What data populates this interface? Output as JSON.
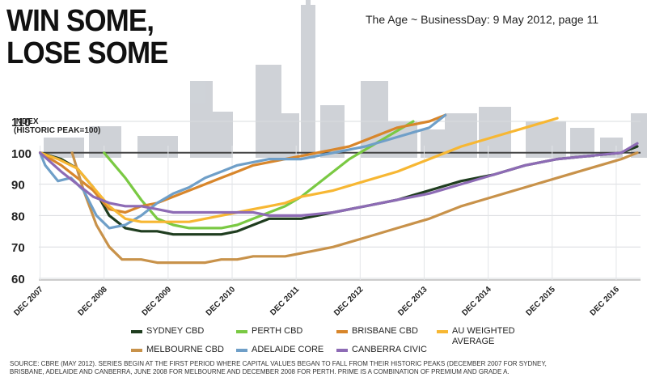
{
  "headline": "WIN SOME,\nLOSE SOME",
  "source_title": "The Age ~ BusinessDay: 9 May 2012, page 11",
  "index_title": "INDEX\n(HISTORIC PEAK=100)",
  "source_note": "SOURCE: CBRE (MAY 2012). SERIES BEGIN AT THE FIRST PERIOD WHERE CAPITAL VALUES BEGAN TO FALL FROM THEIR HISTORIC PEAKS (DECEMBER 2007 FOR SYDNEY, BRISBANE, ADELAIDE AND CANBERRA, JUNE 2008 FOR MELBOURNE AND DECEMBER 2008 FOR PERTH. PRIME IS A COMBINATION OF PREMIUM AND GRADE A.",
  "chart_data": {
    "type": "line",
    "title": "WIN SOME, LOSE SOME",
    "ylabel": "INDEX (HISTORIC PEAK=100)",
    "xlim": [
      2007.9,
      2017.3
    ],
    "ylim": [
      60,
      110
    ],
    "yticks": [
      60,
      70,
      80,
      90,
      100,
      110
    ],
    "reference_line": 100,
    "xticks": [
      {
        "x": 2007.92,
        "label": "DEC 2007"
      },
      {
        "x": 2008.92,
        "label": "DEC 2008"
      },
      {
        "x": 2009.92,
        "label": "DEC 2009"
      },
      {
        "x": 2010.92,
        "label": "DEC 2010"
      },
      {
        "x": 2011.92,
        "label": "DEC 2011"
      },
      {
        "x": 2012.92,
        "label": "DEC 2012"
      },
      {
        "x": 2013.92,
        "label": "DEC 2013"
      },
      {
        "x": 2014.92,
        "label": "DEC 2014"
      },
      {
        "x": 2015.92,
        "label": "DEC 2015"
      },
      {
        "x": 2016.92,
        "label": "DEC 2016"
      }
    ],
    "grid": false,
    "legend_position": "bottom",
    "series": [
      {
        "name": "SYDNEY CBD",
        "color": "#1f3d1f",
        "x": [
          2007.92,
          2008.25,
          2008.5,
          2008.75,
          2009.0,
          2009.25,
          2009.5,
          2009.75,
          2010.0,
          2010.25,
          2010.5,
          2010.75,
          2011.0,
          2011.25,
          2011.5,
          2011.75,
          2012.0,
          2012.5,
          2013.0,
          2013.5,
          2014.0,
          2014.5,
          2015.0,
          2015.5,
          2016.0,
          2016.5,
          2017.0,
          2017.25
        ],
        "y": [
          100,
          98,
          95,
          89,
          80,
          76,
          75,
          75,
          74,
          74,
          74,
          74,
          75,
          77,
          79,
          79,
          79,
          81,
          83,
          85,
          88,
          91,
          93,
          96,
          98,
          99,
          100,
          102
        ]
      },
      {
        "name": "PERTH CBD",
        "color": "#7ac943",
        "x": [
          2008.92,
          2009.25,
          2009.5,
          2009.75,
          2010.0,
          2010.25,
          2010.5,
          2010.75,
          2011.0,
          2011.25,
          2011.5,
          2011.75,
          2012.0,
          2012.25,
          2012.5,
          2012.75,
          2013.0,
          2013.25,
          2013.5,
          2013.75
        ],
        "y": [
          100,
          92,
          85,
          79,
          77,
          76,
          76,
          76,
          77,
          79,
          81,
          83,
          86,
          90,
          94,
          98,
          101,
          104,
          107,
          110
        ]
      },
      {
        "name": "BRISBANE CBD",
        "color": "#d8862b",
        "x": [
          2007.92,
          2008.25,
          2008.5,
          2008.75,
          2009.0,
          2009.25,
          2009.5,
          2009.75,
          2010.0,
          2010.25,
          2010.5,
          2010.75,
          2011.0,
          2011.25,
          2011.5,
          2011.75,
          2012.0,
          2012.25,
          2012.5,
          2012.75,
          2013.0,
          2013.25,
          2013.5,
          2013.75,
          2014.0,
          2014.25
        ],
        "y": [
          100,
          96,
          92,
          88,
          82,
          81,
          83,
          84,
          86,
          88,
          90,
          92,
          94,
          96,
          97,
          98,
          99,
          100,
          101,
          102,
          104,
          106,
          108,
          109,
          110,
          112
        ]
      },
      {
        "name": "MELBOURNE CBD",
        "color": "#c8924a",
        "x": [
          2008.42,
          2008.6,
          2008.8,
          2009.0,
          2009.2,
          2009.5,
          2009.75,
          2010.0,
          2010.25,
          2010.5,
          2010.75,
          2011.0,
          2011.25,
          2011.5,
          2011.75,
          2012.0,
          2012.5,
          2013.0,
          2013.5,
          2014.0,
          2014.5,
          2015.0,
          2015.5,
          2016.0,
          2016.5,
          2017.0,
          2017.25
        ],
        "y": [
          100,
          88,
          77,
          70,
          66,
          66,
          65,
          65,
          65,
          65,
          66,
          66,
          67,
          67,
          67,
          68,
          70,
          73,
          76,
          79,
          83,
          86,
          89,
          92,
          95,
          98,
          100
        ]
      },
      {
        "name": "ADELAIDE CORE",
        "color": "#6f9fc8",
        "x": [
          2007.92,
          2008.0,
          2008.2,
          2008.4,
          2008.6,
          2008.8,
          2009.0,
          2009.25,
          2009.5,
          2009.75,
          2010.0,
          2010.25,
          2010.5,
          2010.75,
          2011.0,
          2011.25,
          2011.5,
          2011.75,
          2012.0,
          2012.5,
          2013.0,
          2013.5,
          2014.0,
          2014.25
        ],
        "y": [
          100,
          96,
          91,
          92,
          88,
          80,
          76,
          77,
          80,
          84,
          87,
          89,
          92,
          94,
          96,
          97,
          98,
          98,
          98,
          100,
          102,
          105,
          108,
          112
        ]
      },
      {
        "name": "AU WEIGHTED\nAVERAGE",
        "color": "#f7b733",
        "x": [
          2007.92,
          2008.2,
          2008.5,
          2008.75,
          2009.0,
          2009.25,
          2009.5,
          2009.75,
          2010.0,
          2010.25,
          2010.5,
          2010.75,
          2011.0,
          2011.25,
          2011.5,
          2011.75,
          2012.0,
          2012.5,
          2013.0,
          2013.5,
          2014.0,
          2014.5,
          2015.0,
          2015.5,
          2016.0
        ],
        "y": [
          100,
          98,
          95,
          89,
          83,
          79,
          78,
          78,
          78,
          78,
          79,
          80,
          81,
          82,
          83,
          84,
          86,
          88,
          91,
          94,
          98,
          102,
          105,
          108,
          111
        ]
      },
      {
        "name": "CANBERRA CIVIC",
        "color": "#8d6bb5",
        "x": [
          2007.92,
          2008.25,
          2008.5,
          2008.75,
          2009.0,
          2009.25,
          2009.5,
          2009.75,
          2010.0,
          2010.25,
          2010.5,
          2010.75,
          2011.0,
          2011.25,
          2011.5,
          2011.75,
          2012.0,
          2012.5,
          2013.0,
          2013.5,
          2014.0,
          2014.5,
          2015.0,
          2015.5,
          2016.0,
          2016.5,
          2017.0,
          2017.25
        ],
        "y": [
          100,
          94,
          90,
          86,
          84,
          83,
          83,
          82,
          81,
          81,
          81,
          81,
          81,
          81,
          80,
          80,
          80,
          81,
          83,
          85,
          87,
          90,
          93,
          96,
          98,
          99,
          100,
          103
        ]
      }
    ]
  }
}
